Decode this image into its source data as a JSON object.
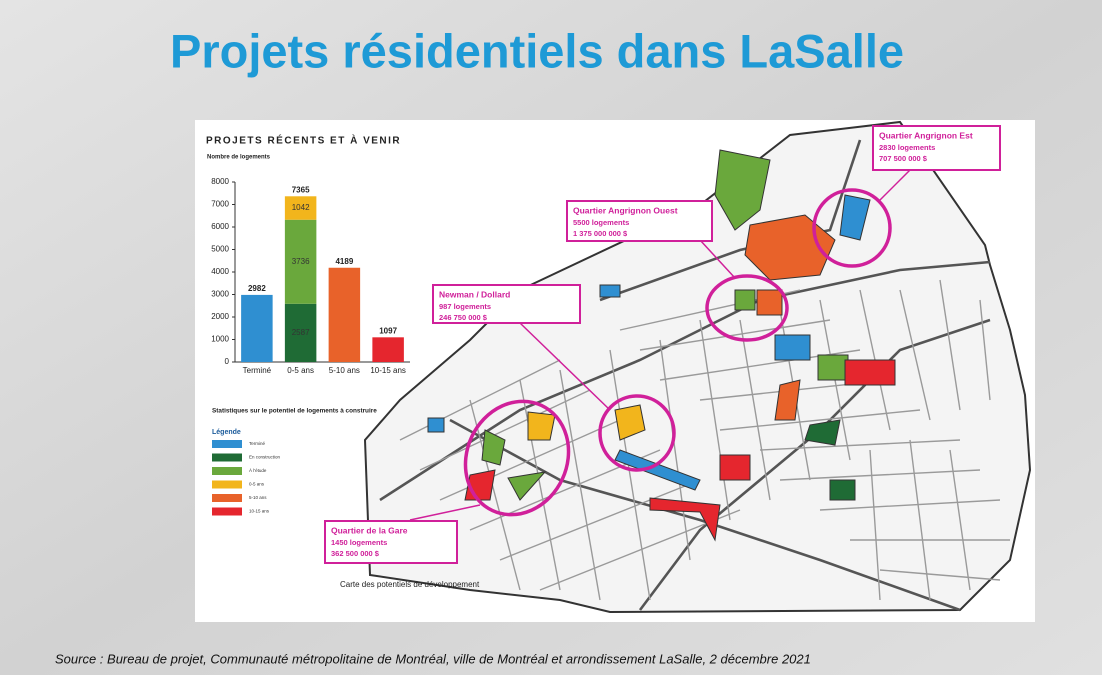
{
  "title": "Projets résidentiels dans LaSalle",
  "source": "Source : Bureau de projet, Communauté métropolitaine de Montréal, ville de Montréal et arrondissement LaSalle, 2 décembre 2021",
  "chart_data": {
    "type": "bar",
    "stacked": true,
    "title": "PROJETS RÉCENTS ET À VENIR",
    "ylabel": "Nombre de logements",
    "subtitle": "Statistiques sur le potentiel de logements à construire",
    "legend_title": "Légende",
    "categories": [
      "Terminé",
      "0-5 ans",
      "5-10 ans",
      "10-15 ans"
    ],
    "series": [
      {
        "name": "Terminé",
        "color": "#2f8fd1",
        "values": [
          2982,
          null,
          null,
          null
        ]
      },
      {
        "name": "En construction",
        "color": "#1f6b35",
        "values": [
          null,
          2587,
          null,
          null
        ]
      },
      {
        "name": "À l'étude",
        "color": "#6aa83c",
        "values": [
          null,
          3736,
          null,
          null
        ]
      },
      {
        "name": "0-5 ans",
        "color": "#f2b51c",
        "values": [
          null,
          1042,
          null,
          null
        ]
      },
      {
        "name": "5-10 ans",
        "color": "#e8622a",
        "values": [
          null,
          null,
          4189,
          null
        ]
      },
      {
        "name": "10-15 ans",
        "color": "#e5262e",
        "values": [
          null,
          null,
          null,
          1097
        ]
      }
    ],
    "totals": [
      2982,
      7365,
      4189,
      1097
    ],
    "ylim": [
      0,
      8000
    ],
    "yticks": [
      0,
      1000,
      2000,
      3000,
      4000,
      5000,
      6000,
      7000,
      8000
    ],
    "grid": false
  },
  "map": {
    "caption": "Carte des potentiels de développement",
    "callouts": [
      {
        "name": "Quartier Angrignon Est",
        "units": "2830 logements",
        "cost": "707 500 000 $"
      },
      {
        "name": "Quartier Angrignon Ouest",
        "units": "5500 logements",
        "cost": "1 375 000 000 $"
      },
      {
        "name": "Newman / Dollard",
        "units": "987 logements",
        "cost": "246 750 000 $"
      },
      {
        "name": "Quartier de la Gare",
        "units": "1450 logements",
        "cost": "362 500 000 $"
      }
    ]
  }
}
